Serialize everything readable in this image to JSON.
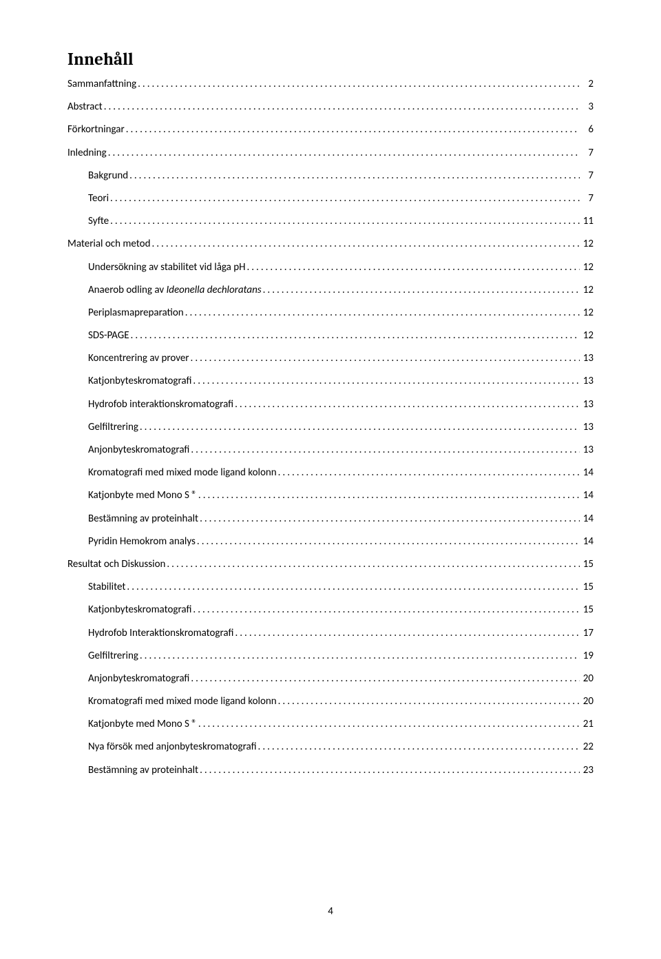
{
  "title": "Innehåll",
  "page_number": "4",
  "entries": [
    {
      "label": "Sammanfattning",
      "page": "2",
      "indent": 0,
      "italic_ranges": []
    },
    {
      "label": "Abstract",
      "page": "3",
      "indent": 0,
      "italic_ranges": []
    },
    {
      "label": "Förkortningar",
      "page": "6",
      "indent": 0,
      "italic_ranges": []
    },
    {
      "label": "Inledning",
      "page": "7",
      "indent": 0,
      "italic_ranges": []
    },
    {
      "label": "Bakgrund",
      "page": "7",
      "indent": 1,
      "italic_ranges": []
    },
    {
      "label": "Teori",
      "page": "7",
      "indent": 1,
      "italic_ranges": []
    },
    {
      "label": "Syfte",
      "page": "11",
      "indent": 1,
      "italic_ranges": []
    },
    {
      "label": "Material och metod",
      "page": "12",
      "indent": 0,
      "italic_ranges": []
    },
    {
      "label": "Undersökning av stabilitet vid låga pH",
      "page": "12",
      "indent": 1,
      "italic_ranges": []
    },
    {
      "label": "Anaerob odling av Ideonella dechloratans",
      "page": "12",
      "indent": 1,
      "italic_ranges": [
        [
          18,
          40
        ]
      ]
    },
    {
      "label": "Periplasmapreparation",
      "page": "12",
      "indent": 1,
      "italic_ranges": []
    },
    {
      "label": "SDS-PAGE",
      "page": "12",
      "indent": 1,
      "italic_ranges": []
    },
    {
      "label": "Koncentrering av prover",
      "page": "13",
      "indent": 1,
      "italic_ranges": []
    },
    {
      "label": "Katjonbyteskromatografi",
      "page": "13",
      "indent": 1,
      "italic_ranges": []
    },
    {
      "label": "Hydrofob interaktionskromatografi",
      "page": "13",
      "indent": 1,
      "italic_ranges": []
    },
    {
      "label": "Gelfiltrering",
      "page": "13",
      "indent": 1,
      "italic_ranges": []
    },
    {
      "label": "Anjonbyteskromatografi",
      "page": "13",
      "indent": 1,
      "italic_ranges": []
    },
    {
      "label": "Kromatografi med mixed mode ligand kolonn",
      "page": "14",
      "indent": 1,
      "italic_ranges": []
    },
    {
      "label": "Katjonbyte med Mono S ®",
      "page": "14",
      "indent": 1,
      "italic_ranges": []
    },
    {
      "label": "Bestämning av proteinhalt",
      "page": "14",
      "indent": 1,
      "italic_ranges": []
    },
    {
      "label": "Pyridin Hemokrom analys",
      "page": "14",
      "indent": 1,
      "italic_ranges": []
    },
    {
      "label": "Resultat och Diskussion",
      "page": "15",
      "indent": 0,
      "italic_ranges": []
    },
    {
      "label": "Stabilitet",
      "page": "15",
      "indent": 1,
      "italic_ranges": []
    },
    {
      "label": "Katjonbyteskromatografi",
      "page": "15",
      "indent": 1,
      "italic_ranges": []
    },
    {
      "label": "Hydrofob Interaktionskromatografi",
      "page": "17",
      "indent": 1,
      "italic_ranges": []
    },
    {
      "label": "Gelfiltrering",
      "page": "19",
      "indent": 1,
      "italic_ranges": []
    },
    {
      "label": "Anjonbyteskromatografi",
      "page": "20",
      "indent": 1,
      "italic_ranges": []
    },
    {
      "label": "Kromatografi med mixed mode ligand kolonn",
      "page": "20",
      "indent": 1,
      "italic_ranges": []
    },
    {
      "label": "Katjonbyte med Mono S ®",
      "page": "21",
      "indent": 1,
      "italic_ranges": []
    },
    {
      "label": "Nya försök med anjonbyteskromatografi",
      "page": "22",
      "indent": 1,
      "italic_ranges": []
    },
    {
      "label": "Bestämning av proteinhalt",
      "page": "23",
      "indent": 1,
      "italic_ranges": []
    }
  ]
}
